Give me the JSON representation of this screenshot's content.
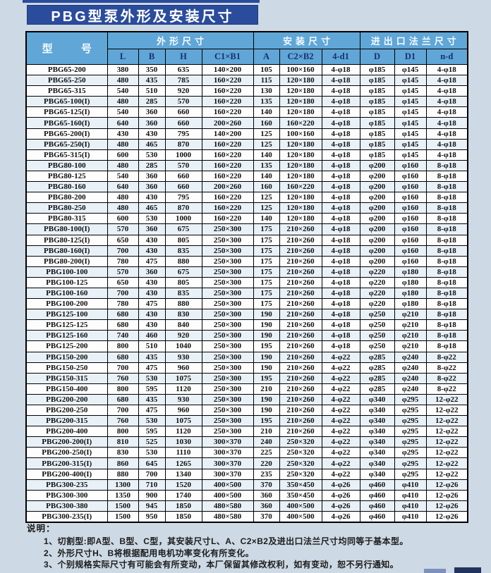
{
  "page": {
    "title": "PBG型泵外形及安装尺寸"
  },
  "table": {
    "model_header": "型 号",
    "groups": [
      {
        "label": "外形尺寸",
        "cols": [
          "L",
          "B",
          "H",
          "C1×B1"
        ]
      },
      {
        "label": "安装尺寸",
        "cols": [
          "A",
          "C2×B2",
          "4-d1"
        ]
      },
      {
        "label": "进出口法兰尺寸",
        "cols": [
          "D",
          "D1",
          "n-d"
        ]
      }
    ],
    "rows": [
      [
        "PBG65-200",
        "380",
        "350",
        "635",
        "140×200",
        "105",
        "100×160",
        "4-φ18",
        "φ185",
        "φ145",
        "4-φ18"
      ],
      [
        "PBG65-250",
        "480",
        "435",
        "785",
        "160×220",
        "115",
        "120×180",
        "4-φ18",
        "φ185",
        "φ145",
        "4-φ18"
      ],
      [
        "PBG65-315",
        "540",
        "510",
        "920",
        "160×220",
        "130",
        "120×180",
        "4-φ18",
        "φ185",
        "φ145",
        "4-φ18"
      ],
      [
        "PBG65-100(I)",
        "480",
        "285",
        "570",
        "160×220",
        "135",
        "120×180",
        "4-φ18",
        "φ185",
        "φ145",
        "4-φ18"
      ],
      [
        "PBG65-125(I)",
        "540",
        "360",
        "660",
        "160×220",
        "140",
        "120×180",
        "4-φ18",
        "φ185",
        "φ145",
        "4-φ18"
      ],
      [
        "PBG65-160(I)",
        "640",
        "360",
        "660",
        "200×260",
        "160",
        "160×220",
        "4-φ18",
        "φ185",
        "φ145",
        "4-φ18"
      ],
      [
        "PBG65-200(I)",
        "430",
        "430",
        "795",
        "140×200",
        "125",
        "100×160",
        "4-φ18",
        "φ185",
        "φ145",
        "4-φ18"
      ],
      [
        "PBG65-250(I)",
        "480",
        "465",
        "870",
        "160×220",
        "125",
        "120×180",
        "4-φ18",
        "φ185",
        "φ145",
        "4-φ18"
      ],
      [
        "PBG65-315(I)",
        "600",
        "530",
        "1000",
        "160×220",
        "140",
        "120×180",
        "4-φ18",
        "φ185",
        "φ145",
        "4-φ18"
      ],
      [
        "PBG80-100",
        "480",
        "285",
        "570",
        "160×220",
        "135",
        "120×180",
        "4-φ18",
        "φ200",
        "φ160",
        "8-φ18"
      ],
      [
        "PBG80-125",
        "540",
        "360",
        "660",
        "160×220",
        "140",
        "120×180",
        "4-φ18",
        "φ200",
        "φ160",
        "8-φ18"
      ],
      [
        "PBG80-160",
        "640",
        "360",
        "660",
        "200×260",
        "160",
        "160×220",
        "4-φ18",
        "φ200",
        "φ160",
        "8-φ18"
      ],
      [
        "PBG80-200",
        "480",
        "430",
        "795",
        "160×220",
        "125",
        "120×180",
        "4-φ18",
        "φ200",
        "φ160",
        "8-φ18"
      ],
      [
        "PBG80-250",
        "480",
        "465",
        "870",
        "160×220",
        "125",
        "120×180",
        "4-φ18",
        "φ200",
        "φ160",
        "8-φ18"
      ],
      [
        "PBG80-315",
        "600",
        "530",
        "1000",
        "160×220",
        "140",
        "120×180",
        "4-φ18",
        "φ200",
        "φ160",
        "8-φ18"
      ],
      [
        "PBG80-100(I)",
        "570",
        "360",
        "675",
        "250×300",
        "175",
        "210×260",
        "4-φ18",
        "φ200",
        "φ160",
        "8-φ18"
      ],
      [
        "PBG80-125(I)",
        "650",
        "430",
        "805",
        "250×300",
        "175",
        "210×260",
        "4-φ18",
        "φ200",
        "φ160",
        "8-φ18"
      ],
      [
        "PBG80-160(I)",
        "700",
        "430",
        "835",
        "250×300",
        "175",
        "210×260",
        "4-φ18",
        "φ200",
        "φ160",
        "8-φ18"
      ],
      [
        "PBG80-200(I)",
        "780",
        "475",
        "880",
        "250×300",
        "175",
        "210×260",
        "4-φ18",
        "φ200",
        "φ160",
        "8-φ18"
      ],
      [
        "PBG100-100",
        "570",
        "360",
        "675",
        "250×300",
        "175",
        "210×260",
        "4-φ18",
        "φ220",
        "φ180",
        "8-φ18"
      ],
      [
        "PBG100-125",
        "650",
        "430",
        "805",
        "250×300",
        "175",
        "210×260",
        "4-φ18",
        "φ220",
        "φ180",
        "8-φ18"
      ],
      [
        "PBG100-160",
        "700",
        "430",
        "835",
        "250×300",
        "175",
        "210×260",
        "4-φ18",
        "φ220",
        "φ180",
        "8-φ18"
      ],
      [
        "PBG100-200",
        "780",
        "475",
        "880",
        "250×300",
        "175",
        "210×260",
        "4-φ18",
        "φ220",
        "φ180",
        "8-φ18"
      ],
      [
        "PBG125-100",
        "680",
        "430",
        "830",
        "250×300",
        "190",
        "210×260",
        "4-φ18",
        "φ250",
        "φ210",
        "8-φ18"
      ],
      [
        "PBG125-125",
        "680",
        "430",
        "840",
        "250×300",
        "190",
        "210×260",
        "4-φ18",
        "φ250",
        "φ210",
        "8-φ18"
      ],
      [
        "PBG125-160",
        "740",
        "460",
        "920",
        "250×300",
        "190",
        "210×260",
        "4-φ18",
        "φ250",
        "φ210",
        "8-φ18"
      ],
      [
        "PBG125-200",
        "800",
        "510",
        "1040",
        "250×300",
        "195",
        "210×260",
        "4-φ18",
        "φ250",
        "φ210",
        "8-φ18"
      ],
      [
        "PBG150-200",
        "680",
        "435",
        "930",
        "250×300",
        "190",
        "210×260",
        "4-φ22",
        "φ285",
        "φ240",
        "8-φ22"
      ],
      [
        "PBG150-250",
        "700",
        "475",
        "960",
        "250×300",
        "190",
        "210×260",
        "4-φ22",
        "φ285",
        "φ240",
        "8-φ22"
      ],
      [
        "PBG150-315",
        "760",
        "530",
        "1075",
        "250×300",
        "195",
        "210×260",
        "4-φ22",
        "φ285",
        "φ240",
        "8-φ22"
      ],
      [
        "PBG150-400",
        "800",
        "595",
        "1120",
        "250×300",
        "210",
        "210×260",
        "4-φ22",
        "φ285",
        "φ240",
        "8-φ22"
      ],
      [
        "PBG200-200",
        "680",
        "435",
        "930",
        "250×300",
        "190",
        "210×260",
        "4-φ22",
        "φ340",
        "φ295",
        "12-φ22"
      ],
      [
        "PBG200-250",
        "700",
        "475",
        "960",
        "250×300",
        "190",
        "210×260",
        "4-φ22",
        "φ340",
        "φ295",
        "12-φ22"
      ],
      [
        "PBG200-315",
        "760",
        "530",
        "1075",
        "250×300",
        "195",
        "210×260",
        "4-φ22",
        "φ340",
        "φ295",
        "12-φ22"
      ],
      [
        "PBG200-400",
        "800",
        "595",
        "1120",
        "250×300",
        "210",
        "210×260",
        "4-φ22",
        "φ340",
        "φ295",
        "12-φ22"
      ],
      [
        "PBG200-200(I)",
        "810",
        "525",
        "1030",
        "300×370",
        "240",
        "250×320",
        "4-φ22",
        "φ340",
        "φ295",
        "12-φ22"
      ],
      [
        "PBG200-250(I)",
        "830",
        "530",
        "1110",
        "300×370",
        "225",
        "250×320",
        "4-φ22",
        "φ340",
        "φ295",
        "12-φ22"
      ],
      [
        "PBG200-315(I)",
        "860",
        "645",
        "1265",
        "300×370",
        "220",
        "250×320",
        "4-φ22",
        "φ340",
        "φ295",
        "12-φ22"
      ],
      [
        "PBG200-400(I)",
        "880",
        "700",
        "1340",
        "300×370",
        "235",
        "250×320",
        "4-φ22",
        "φ340",
        "φ295",
        "12-φ22"
      ],
      [
        "PBG300-235",
        "1300",
        "710",
        "1520",
        "400×500",
        "370",
        "350×450",
        "4-φ26",
        "φ460",
        "φ410",
        "12-φ26"
      ],
      [
        "PBG300-300",
        "1350",
        "900",
        "1740",
        "400×500",
        "360",
        "350×450",
        "4-φ26",
        "φ460",
        "φ410",
        "12-φ26"
      ],
      [
        "PBG300-380",
        "1500",
        "945",
        "1850",
        "480×580",
        "360",
        "400×500",
        "4-φ26",
        "φ460",
        "φ410",
        "12-φ26"
      ],
      [
        "PBG300-235(I)",
        "1500",
        "950",
        "1850",
        "480×580",
        "370",
        "400×500",
        "4-φ26",
        "φ460",
        "φ410",
        "12-φ26"
      ]
    ]
  },
  "notes": {
    "heading": "说明：",
    "items": [
      "1、切割型:即A型、B型、C型，其安装尺寸L、A、C2×B2及进出口法兰尺寸均同等于基本型。",
      "2、外形尺寸H、B将根据配用电机功率变化有所变化。",
      "3、个别规格实际尺寸有可能会有所变动，本厂保留其修改权利，如有变动，恕不另行通知。"
    ]
  },
  "colors": {
    "title_bg": "#2b4c9c",
    "header_bg": "#60a6d6",
    "header_group_text": "#f4f9ff",
    "header_sub_text": "#17306e",
    "page_bg": "#cdd9e4",
    "row_alt_bg": "#e9f1f8"
  }
}
